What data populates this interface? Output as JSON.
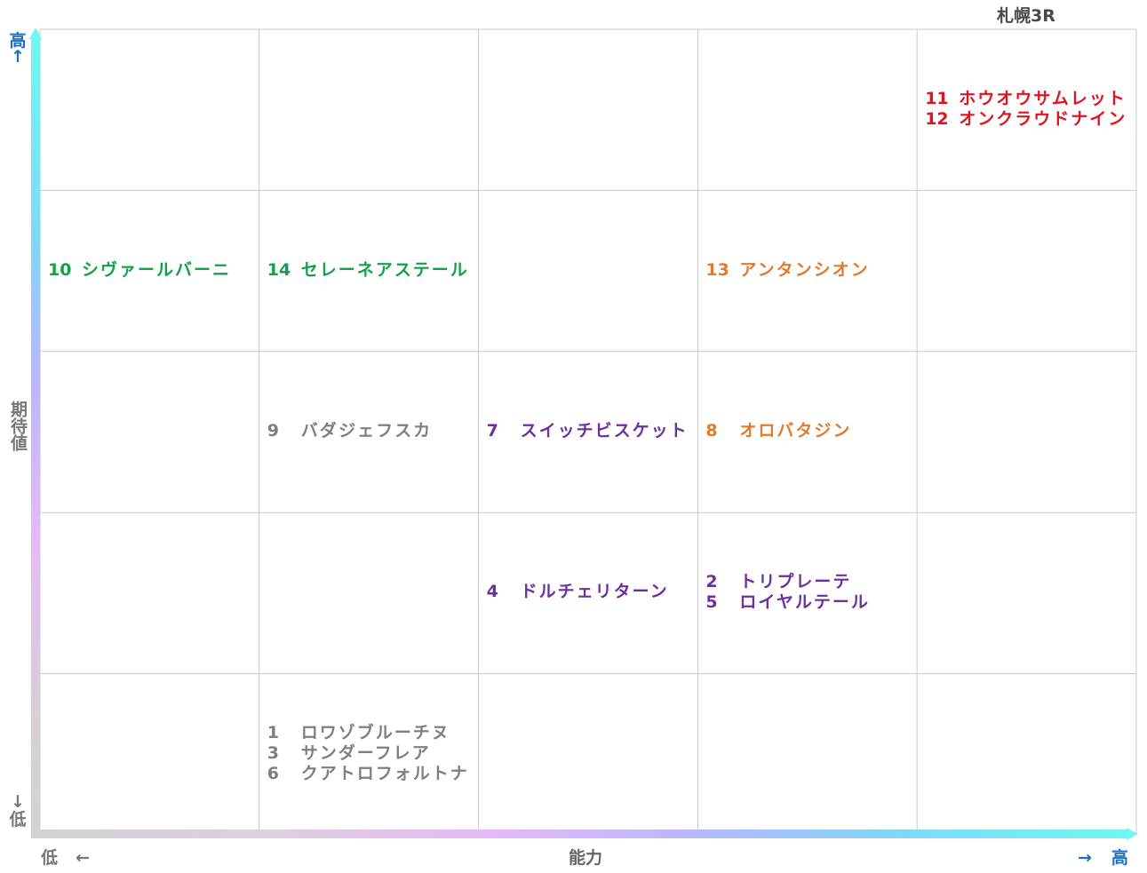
{
  "chart_data": {
    "type": "table",
    "title": "札幌3R",
    "xlabel": "能力",
    "ylabel": "期待値",
    "x_low": "低",
    "x_high": "高",
    "y_low": "低",
    "y_high": "高",
    "x_arrow_left": "←",
    "x_arrow_right": "→",
    "y_arrow_up": "↑",
    "y_arrow_down": "↓",
    "colors": {
      "red": "#e0141e",
      "green": "#12a04a",
      "orange": "#e07a2e",
      "purple": "#6c2f9e",
      "gray": "#7f7f7f",
      "blue": "#1f6fbf",
      "grid": "#c9c9c9"
    },
    "cells": [
      {
        "col": 5,
        "row": 5,
        "color": "red",
        "entries": [
          {
            "no": "11",
            "name": "ホウオウサムレット"
          },
          {
            "no": "12",
            "name": "オンクラウドナイン"
          }
        ]
      },
      {
        "col": 1,
        "row": 4,
        "color": "green",
        "entries": [
          {
            "no": "10",
            "name": "シヴァールバーニ"
          }
        ]
      },
      {
        "col": 2,
        "row": 4,
        "color": "green",
        "entries": [
          {
            "no": "14",
            "name": "セレーネアステール"
          }
        ]
      },
      {
        "col": 4,
        "row": 4,
        "color": "orange",
        "entries": [
          {
            "no": "13",
            "name": "アンタンシオン"
          }
        ]
      },
      {
        "col": 2,
        "row": 3,
        "color": "gray",
        "entries": [
          {
            "no": "9",
            "name": "バダジェフスカ"
          }
        ]
      },
      {
        "col": 3,
        "row": 3,
        "color": "purple",
        "entries": [
          {
            "no": "7",
            "name": "スイッチビスケット"
          }
        ]
      },
      {
        "col": 4,
        "row": 3,
        "color": "orange",
        "entries": [
          {
            "no": "8",
            "name": "オロバタジン"
          }
        ]
      },
      {
        "col": 3,
        "row": 2,
        "color": "purple",
        "entries": [
          {
            "no": "4",
            "name": "ドルチェリターン"
          }
        ]
      },
      {
        "col": 4,
        "row": 2,
        "color": "purple",
        "entries": [
          {
            "no": "2",
            "name": "トリプレーテ"
          },
          {
            "no": "5",
            "name": "ロイヤルテール"
          }
        ]
      },
      {
        "col": 2,
        "row": 1,
        "color": "gray",
        "entries": [
          {
            "no": "1",
            "name": "ロワゾブルーチヌ"
          },
          {
            "no": "3",
            "name": "サンダーフレア"
          },
          {
            "no": "6",
            "name": "クアトロフォルトナ"
          }
        ]
      }
    ]
  }
}
